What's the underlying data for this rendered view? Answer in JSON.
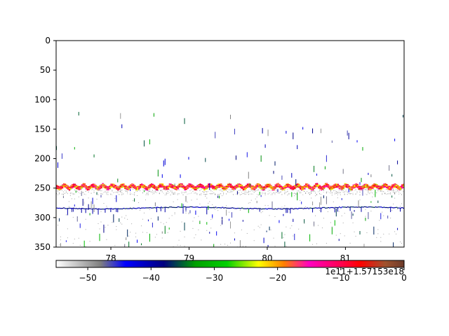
{
  "chart_data": {
    "type": "heatmap",
    "title": "",
    "xlabel": "",
    "ylabel": "",
    "x_offset_label": "1e11+1.57153e18",
    "xlim": [
      77.3,
      81.75
    ],
    "ylim": [
      350,
      0
    ],
    "x_ticks": [
      78,
      79,
      80,
      81
    ],
    "y_ticks": [
      0,
      50,
      100,
      150,
      200,
      250,
      300,
      350
    ],
    "colorbar": {
      "orientation": "horizontal",
      "range": [
        -55,
        0
      ],
      "ticks": [
        -50,
        -40,
        -30,
        -20,
        -10,
        0
      ],
      "stops": [
        {
          "value": -55,
          "color": "#ffffff"
        },
        {
          "value": -48,
          "color": "#808080"
        },
        {
          "value": -44,
          "color": "#0000ff"
        },
        {
          "value": -38,
          "color": "#00007f"
        },
        {
          "value": -33,
          "color": "#00a000"
        },
        {
          "value": -28,
          "color": "#00d000"
        },
        {
          "value": -23,
          "color": "#ffff00"
        },
        {
          "value": -19,
          "color": "#ff8000"
        },
        {
          "value": -15,
          "color": "#ff00c0"
        },
        {
          "value": -10,
          "color": "#ff0050"
        },
        {
          "value": -7,
          "color": "#ff0000"
        },
        {
          "value": -3,
          "color": "#a0522d"
        },
        {
          "value": 0,
          "color": "#6b3a2a"
        }
      ]
    },
    "features": [
      {
        "name": "strong-layer",
        "y_mean": 247,
        "y_wave_amplitude": 2.5,
        "value_range": [
          -25,
          -5
        ]
      },
      {
        "name": "second-layer",
        "y_mean": 283,
        "value_range": [
          -42,
          -36
        ]
      },
      {
        "name": "scatter-below-layer",
        "y_range": [
          250,
          350
        ],
        "value_range": [
          -50,
          -30
        ]
      },
      {
        "name": "sparse-scatter-above-layer",
        "y_range": [
          120,
          245
        ],
        "value_range": [
          -50,
          -30
        ]
      }
    ]
  }
}
